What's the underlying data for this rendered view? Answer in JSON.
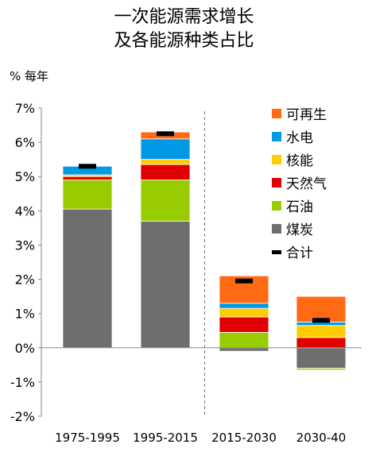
{
  "chart_data": {
    "type": "bar",
    "stacked": true,
    "title": "一次能源需求增长",
    "subtitle": "及各能源种类占比",
    "ylabel": "% 每年",
    "ylim": [
      -2,
      7
    ],
    "yticks": [
      -2,
      -1,
      0,
      1,
      2,
      3,
      4,
      5,
      6,
      7
    ],
    "ytick_labels": [
      "-2%",
      "-1%",
      "0%",
      "1%",
      "2%",
      "3%",
      "4%",
      "5%",
      "6%",
      "7%"
    ],
    "categories": [
      "1975-1995",
      "1995-2015",
      "2015-2030",
      "2030-40"
    ],
    "divider_after_category": 1,
    "legend_position": "top-right",
    "series": [
      {
        "name": "煤炭",
        "color": "#6e6e6e",
        "values": [
          4.05,
          3.7,
          -0.1,
          -0.6
        ]
      },
      {
        "name": "石油",
        "color": "#99cc00",
        "values": [
          0.85,
          1.2,
          0.45,
          -0.05
        ]
      },
      {
        "name": "天然气",
        "color": "#e00000",
        "values": [
          0.1,
          0.45,
          0.45,
          0.3
        ]
      },
      {
        "name": "核能",
        "color": "#ffcc00",
        "values": [
          0.05,
          0.15,
          0.25,
          0.35
        ]
      },
      {
        "name": "水电",
        "color": "#0099e6",
        "values": [
          0.25,
          0.6,
          0.15,
          0.1
        ]
      },
      {
        "name": "可再生",
        "color": "#ff6a13",
        "values": [
          0.0,
          0.2,
          0.8,
          0.75
        ]
      }
    ],
    "total": {
      "name": "合计",
      "color": "#000000",
      "values": [
        5.3,
        6.25,
        1.95,
        0.8
      ]
    }
  }
}
